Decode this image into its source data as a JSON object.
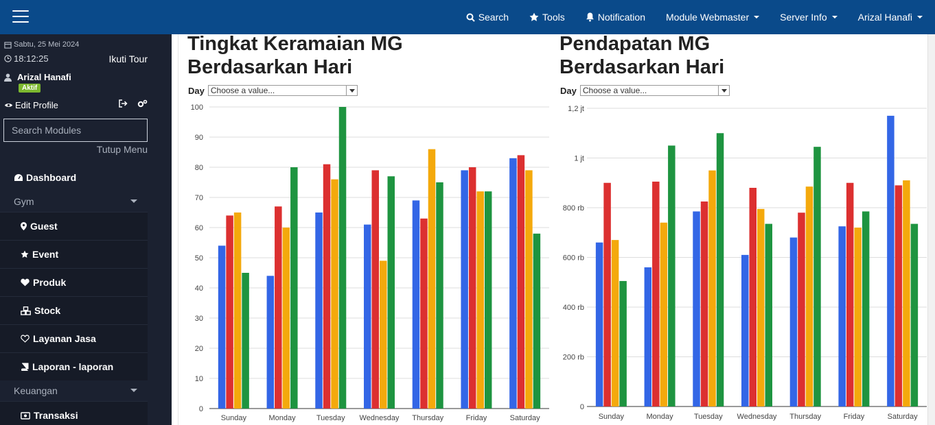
{
  "topbar": {
    "nav": [
      {
        "label": "Search",
        "icon": "search-icon"
      },
      {
        "label": "Tools",
        "icon": "star-icon"
      },
      {
        "label": "Notification",
        "icon": "bell-icon"
      },
      {
        "label": "Module Webmaster",
        "dropdown": true
      },
      {
        "label": "Server Info",
        "dropdown": true
      },
      {
        "label": "Arizal Hanafi",
        "dropdown": true
      }
    ]
  },
  "sidebar": {
    "date": "Sabtu, 25 Mei 2024",
    "time": "18:12:25",
    "tour": "Ikuti Tour",
    "user": "Arizal Hanafi",
    "badge": "Aktif",
    "edit_profile": "Edit Profile",
    "search_placeholder": "Search Modules",
    "close_menu": "Tutup Menu",
    "dashboard": "Dashboard",
    "group_gym": "Gym",
    "gym_items": [
      {
        "label": "Guest",
        "icon": "map-marker-icon"
      },
      {
        "label": "Event",
        "icon": "star-icon"
      },
      {
        "label": "Produk",
        "icon": "heart-icon"
      },
      {
        "label": "Stock",
        "icon": "cubes-icon"
      },
      {
        "label": "Layanan Jasa",
        "icon": "heart-outline-icon"
      },
      {
        "label": "Laporan - laporan",
        "icon": "book-icon"
      }
    ],
    "group_keuangan": "Keuangan",
    "keuangan_items": [
      {
        "label": "Transaksi",
        "icon": "money-icon"
      }
    ]
  },
  "charts": {
    "left": {
      "title_line1": "Tingkat Keramaian MG",
      "title_line2": "Berdasarkan Hari",
      "filter_label": "Day",
      "filter_value": "Choose a value..."
    },
    "right": {
      "title_line1": "Pendapatan MG",
      "title_line2": "Berdasarkan Hari",
      "filter_label": "Day",
      "filter_value": "Choose a value..."
    }
  },
  "chart_data": [
    {
      "type": "bar",
      "categories": [
        "Sunday",
        "Monday",
        "Tuesday",
        "Wednesday",
        "Thursday",
        "Friday",
        "Saturday"
      ],
      "ylim": [
        0,
        100
      ],
      "yticks": [
        0,
        10,
        20,
        30,
        40,
        50,
        60,
        70,
        80,
        90,
        100
      ],
      "ytick_labels": [
        "0",
        "10",
        "20",
        "30",
        "40",
        "50",
        "60",
        "70",
        "80",
        "90",
        "100"
      ],
      "grid": true,
      "series": [
        {
          "color": "#3366e6",
          "values": [
            54,
            44,
            65,
            61,
            69,
            79,
            83
          ]
        },
        {
          "color": "#dc3030",
          "values": [
            64,
            67,
            81,
            79,
            63,
            80,
            84
          ]
        },
        {
          "color": "#f4a90c",
          "values": [
            65,
            60,
            76,
            49,
            86,
            72,
            79
          ]
        },
        {
          "color": "#1e9440",
          "values": [
            45,
            80,
            100,
            77,
            75,
            72,
            58
          ]
        }
      ]
    },
    {
      "type": "bar",
      "categories": [
        "Sunday",
        "Monday",
        "Tuesday",
        "Wednesday",
        "Thursday",
        "Friday",
        "Saturday"
      ],
      "ylim": [
        0,
        1200000
      ],
      "yticks": [
        0,
        200000,
        400000,
        600000,
        800000,
        1000000,
        1200000
      ],
      "ytick_labels": [
        "0",
        "200 rb",
        "400 rb",
        "600 rb",
        "800 rb",
        "1 jt",
        "1,2 jt"
      ],
      "grid": true,
      "series": [
        {
          "color": "#3366e6",
          "values": [
            660000,
            560000,
            785000,
            610000,
            680000,
            725000,
            1170000
          ]
        },
        {
          "color": "#dc3030",
          "values": [
            900000,
            905000,
            825000,
            880000,
            780000,
            900000,
            890000
          ]
        },
        {
          "color": "#f4a90c",
          "values": [
            670000,
            740000,
            950000,
            795000,
            885000,
            720000,
            910000
          ]
        },
        {
          "color": "#1e9440",
          "values": [
            505000,
            1050000,
            1100000,
            735000,
            1045000,
            785000,
            735000
          ]
        }
      ]
    }
  ]
}
